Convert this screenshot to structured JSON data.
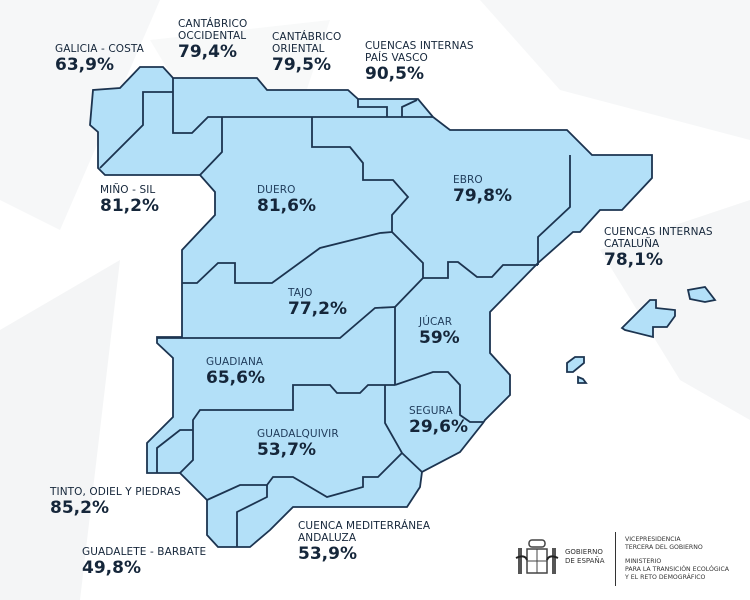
{
  "colors": {
    "basin_fill": "#b3e0f8",
    "border": "#1c3450",
    "text": "#15263a",
    "background": "#ffffff"
  },
  "basins": [
    {
      "name": "GALICIA - COSTA",
      "value": "63,9%"
    },
    {
      "name": "CANTÁBRICO\nOCCIDENTAL",
      "value": "79,4%"
    },
    {
      "name": "CANTÁBRICO\nORIENTAL",
      "value": "79,5%"
    },
    {
      "name": "CUENCAS INTERNAS\nPAÍS VASCO",
      "value": "90,5%"
    },
    {
      "name": "MIÑO - SIL",
      "value": "81,2%"
    },
    {
      "name": "DUERO",
      "value": "81,6%"
    },
    {
      "name": "EBRO",
      "value": "79,8%"
    },
    {
      "name": "CUENCAS INTERNAS\nCATALUÑA",
      "value": "78,1%"
    },
    {
      "name": "TAJO",
      "value": "77,2%"
    },
    {
      "name": "JÚCAR",
      "value": "59%"
    },
    {
      "name": "GUADIANA",
      "value": "65,6%"
    },
    {
      "name": "SEGURA",
      "value": "29,6%"
    },
    {
      "name": "GUADALQUIVIR",
      "value": "53,7%"
    },
    {
      "name": "TINTO, ODIEL Y PIEDRAS",
      "value": "85,2%"
    },
    {
      "name": "CUENCA MEDITERRÁNEA\nANDALUZA",
      "value": "53,9%"
    },
    {
      "name": "GUADALETE - BARBATE",
      "value": "49,8%"
    }
  ],
  "footer": {
    "gobierno": "GOBIERNO\nDE ESPAÑA",
    "vicepresidencia": "VICEPRESIDENCIA\nTERCERA DEL GOBIERNO",
    "ministerio": "MINISTERIO\nPARA LA TRANSICIÓN ECOLÓGICA\nY EL RETO DEMOGRÁFICO"
  }
}
